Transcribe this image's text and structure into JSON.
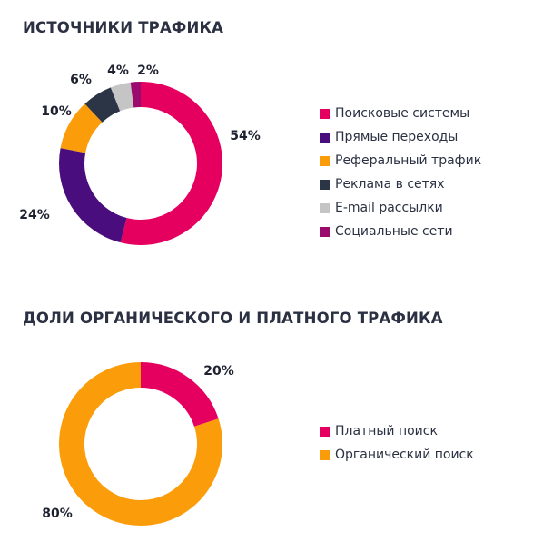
{
  "chart_data": [
    {
      "type": "pie",
      "title": "ИСТОЧНИКИ ТРАФИКА",
      "categories": [
        "Поисковые системы",
        "Прямые переходы",
        "Реферальный трафик",
        "Реклама в сетях",
        "E-mail рассылки",
        "Социальные сети"
      ],
      "values": [
        54,
        24,
        10,
        6,
        4,
        2
      ],
      "value_labels": [
        "54%",
        "24%",
        "10%",
        "6%",
        "4%",
        "2%"
      ],
      "colors": [
        "#e5005f",
        "#4a0d7e",
        "#fb9d0b",
        "#2c3545",
        "#c5c5c5",
        "#9b0b6e"
      ],
      "donut": true,
      "legend_position": "right"
    },
    {
      "type": "pie",
      "title": "ДОЛИ ОРГАНИЧЕСКОГО И ПЛАТНОГО ТРАФИКА",
      "categories": [
        "Платный поиск",
        "Органический поиск"
      ],
      "values": [
        20,
        80
      ],
      "value_labels": [
        "20%",
        "80%"
      ],
      "colors": [
        "#e5005f",
        "#fb9d0b"
      ],
      "donut": true,
      "legend_position": "right"
    }
  ]
}
